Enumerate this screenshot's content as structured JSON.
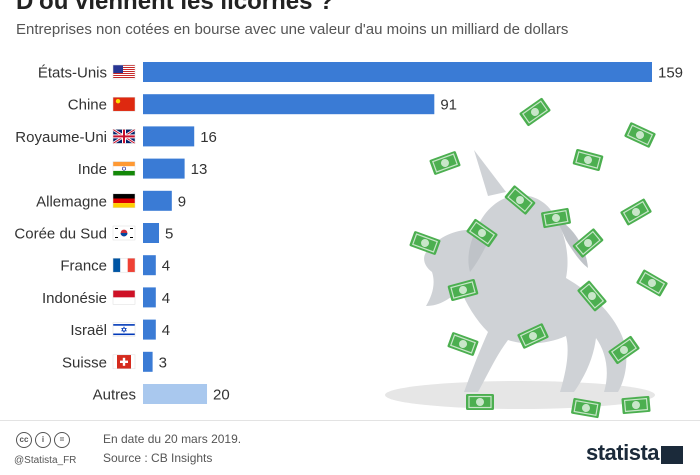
{
  "title": "D'où viennent les licornes ?",
  "subtitle": "Entreprises non cotées en bourse avec une valeur d'au moins un milliard de dollars",
  "chart_data": {
    "type": "bar",
    "orientation": "horizontal",
    "categories": [
      "États-Unis",
      "Chine",
      "Royaume-Uni",
      "Inde",
      "Allemagne",
      "Corée du Sud",
      "France",
      "Indonésie",
      "Israël",
      "Suisse",
      "Autres"
    ],
    "values": [
      159,
      91,
      16,
      13,
      9,
      5,
      4,
      4,
      4,
      3,
      20
    ],
    "flags": [
      "us-flag-icon",
      "cn-flag-icon",
      "gb-flag-icon",
      "in-flag-icon",
      "de-flag-icon",
      "kr-flag-icon",
      "fr-flag-icon",
      "id-flag-icon",
      "il-flag-icon",
      "ch-flag-icon",
      ""
    ],
    "bar_color": "#3a7bd5",
    "other_bar_color": "#a9c8ee",
    "xlim": [
      0,
      159
    ]
  },
  "footer": {
    "handle": "@Statista_FR",
    "date_note": "En date du 20 mars 2019.",
    "source": "Source : CB Insights",
    "brand": "statista"
  }
}
